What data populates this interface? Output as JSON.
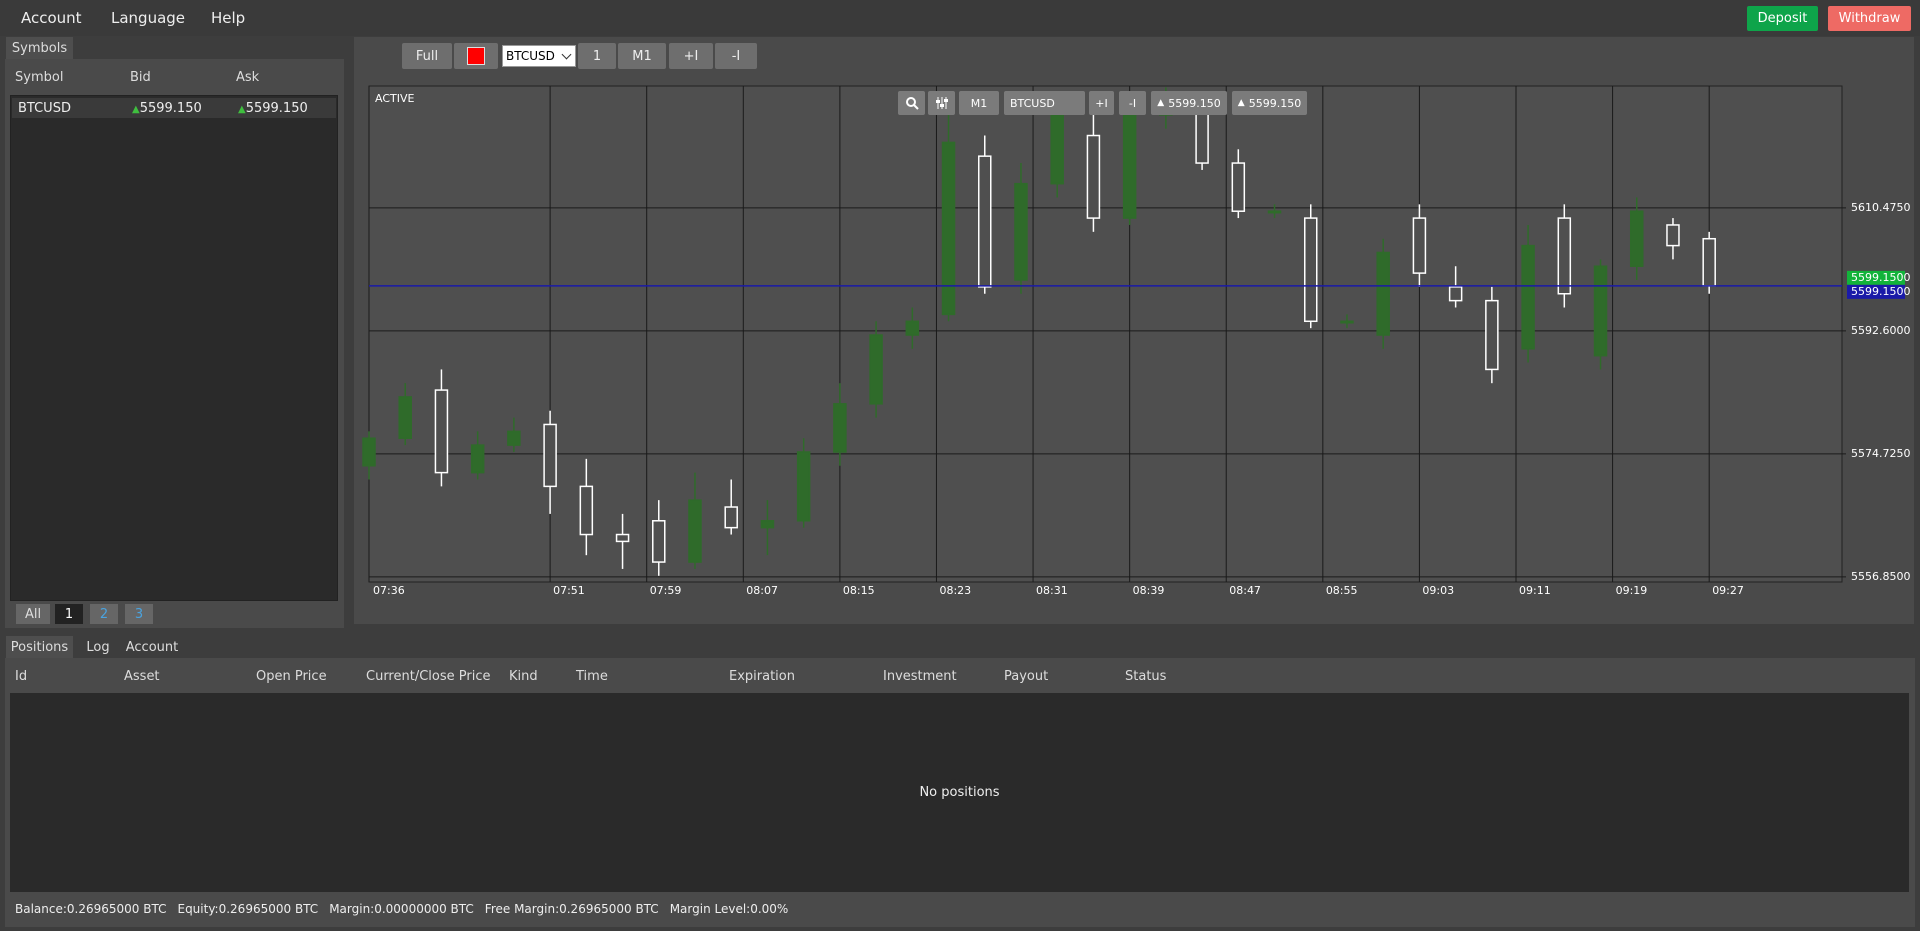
{
  "menu": [
    "Account",
    "Language",
    "Help"
  ],
  "buttons": {
    "deposit": "Deposit",
    "withdraw": "Withdraw"
  },
  "symbols_panel": {
    "tab": "Symbols",
    "columns": [
      "Symbol",
      "Bid",
      "Ask"
    ],
    "rows": [
      [
        "BTCUSD",
        "5599.150",
        "5599.150"
      ]
    ],
    "pages": [
      "All",
      "1",
      "2",
      "3"
    ]
  },
  "chart_toolbar": {
    "full": "Full",
    "symbol": "BTCUSD",
    "count": "1",
    "timeframe": "M1",
    "zoom_in": "+I",
    "zoom_out": "-I"
  },
  "overlay_toolbar": {
    "timeframe": "M1",
    "symbol": "BTCUSD",
    "zoom_in": "+I",
    "zoom_out": "-I",
    "bid": "5599.150",
    "ask": "5599.150"
  },
  "chart_data": {
    "type": "candlestick",
    "status": "ACTIVE",
    "up_color": "#2f6b2a",
    "down_color": "#ffffff",
    "x": [
      "07:36",
      "07:39",
      "07:42",
      "07:45",
      "07:48",
      "07:51",
      "07:54",
      "07:57",
      "08:00",
      "08:03",
      "08:06",
      "08:09",
      "08:12",
      "08:15",
      "08:18",
      "08:21",
      "08:24",
      "08:27",
      "08:30",
      "08:33",
      "08:36",
      "08:39",
      "08:42",
      "08:45",
      "08:48",
      "08:51",
      "08:54",
      "08:57",
      "09:00",
      "09:03",
      "09:06",
      "09:09",
      "09:12",
      "09:15",
      "09:18",
      "09:21",
      "09:24",
      "09:27"
    ],
    "open": [
      5573,
      5577,
      5584,
      5572,
      5576,
      5579,
      5570,
      5563,
      5565,
      5559,
      5567,
      5564,
      5565,
      5575,
      5582,
      5592,
      5595,
      5618,
      5600,
      5614,
      5621,
      5609,
      5624,
      5625,
      5617,
      5610,
      5609,
      5594,
      5592,
      5609,
      5599,
      5597,
      5590,
      5609,
      5589,
      5602,
      5608,
      5606
    ],
    "high": [
      5578,
      5585,
      5587,
      5578,
      5580,
      5581,
      5574,
      5566,
      5568,
      5572,
      5571,
      5568,
      5577,
      5585,
      5594,
      5596,
      5625,
      5621,
      5617,
      5627,
      5624,
      5626,
      5628,
      5627,
      5619,
      5611,
      5611,
      5595,
      5606,
      5611,
      5602,
      5599,
      5608,
      5611,
      5603,
      5612,
      5609,
      5607
    ],
    "low": [
      5571,
      5576,
      5570,
      5571,
      5575,
      5566,
      5560,
      5558,
      5557,
      5558,
      5563,
      5560,
      5564,
      5573,
      5580,
      5590,
      5594,
      5598,
      5598,
      5612,
      5607,
      5608,
      5622,
      5616,
      5609,
      5609,
      5593,
      5593,
      5590,
      5599,
      5596,
      5585,
      5588,
      5596,
      5587,
      5600,
      5603,
      5598
    ],
    "close": [
      5577,
      5583,
      5572,
      5576,
      5578,
      5570,
      5563,
      5562,
      5559,
      5568,
      5564,
      5565,
      5575,
      5582,
      5592,
      5594,
      5620,
      5599,
      5614,
      5624,
      5609,
      5624,
      5626,
      5617,
      5610,
      5610,
      5594,
      5594,
      5604,
      5601,
      5597,
      5587,
      5605,
      5598,
      5602,
      5610,
      5605,
      5599.15
    ],
    "xlim": [
      "07:36",
      "09:38"
    ],
    "xticks": [
      "07:36",
      "07:51",
      "07:59",
      "08:07",
      "08:15",
      "08:23",
      "08:31",
      "08:39",
      "08:47",
      "08:55",
      "09:03",
      "09:11",
      "09:19",
      "09:27"
    ],
    "ylim": [
      5556.1,
      5628.2
    ],
    "yticks": [
      {
        "value": 5556.85,
        "label": "5556.8500"
      },
      {
        "value": 5574.725,
        "label": "5574.7250"
      },
      {
        "value": 5592.6,
        "label": "5592.6000"
      },
      {
        "value": 5610.475,
        "label": "5610.4750"
      }
    ],
    "bid": {
      "value": 5599.15,
      "label": "5599.1500",
      "color": "#12b33a"
    },
    "ask": {
      "value": 5599.15,
      "label": "5599.1500",
      "color": "#1a1aa8"
    }
  },
  "bottom_panel": {
    "tabs": [
      "Positions",
      "Log",
      "Account"
    ],
    "columns": [
      "Id",
      "Asset",
      "Open Price",
      "Current/Close Price",
      "Kind",
      "Time",
      "Expiration",
      "Investment",
      "Payout",
      "Status"
    ],
    "empty": "No positions",
    "status": [
      "Balance:0.26965000 BTC",
      "Equity:0.26965000 BTC",
      "Margin:0.00000000 BTC",
      "Free Margin:0.26965000 BTC",
      "Margin Level:0.00%"
    ]
  }
}
